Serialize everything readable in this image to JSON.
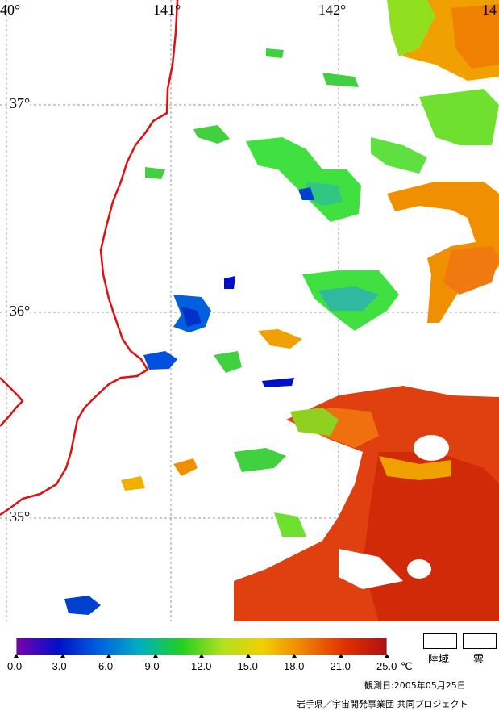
{
  "map": {
    "longitudes": [
      "40°",
      "141°",
      "142°",
      "14"
    ],
    "latitudes": [
      "37°",
      "36°",
      "35°"
    ],
    "land_color": "#ffffff",
    "coast_color": "#e01010",
    "grid_color": "#999999"
  },
  "legend": {
    "ticks": [
      "0.0",
      "3.0",
      "6.0",
      "9.0",
      "12.0",
      "15.0",
      "18.0",
      "21.0",
      "25.0"
    ],
    "unit": "℃",
    "land_label": "陸域",
    "cloud_label": "雲",
    "scale_colors": [
      "#7a00b0",
      "#0010c8",
      "#0060e0",
      "#00b0c0",
      "#20d020",
      "#b0e020",
      "#f0d000",
      "#f08000",
      "#e03000",
      "#b01010"
    ]
  },
  "observation_date": "観測日:2005年05月25日",
  "credit": "岩手県／宇宙開発事業団 共同プロジェクト"
}
